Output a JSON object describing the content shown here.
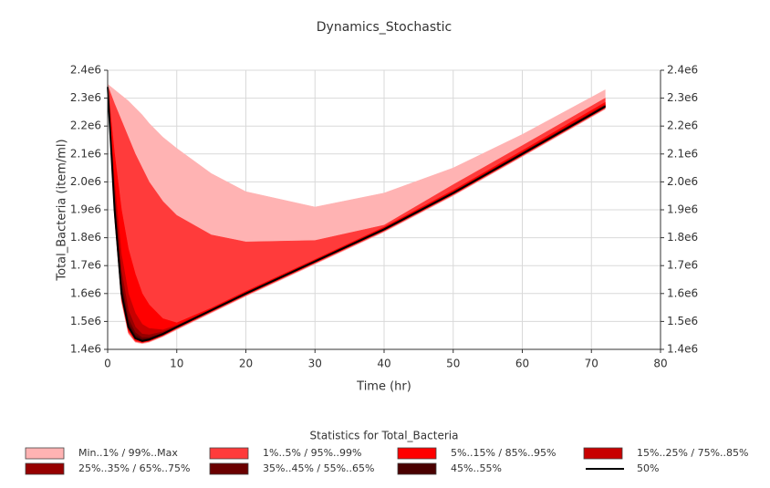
{
  "chart_data": {
    "type": "fan",
    "title": "Dynamics_Stochastic",
    "x_label": "Time (hr)",
    "y_label": "Total_Bacteria (item/ml)",
    "legend_title": "Statistics for Total_Bacteria",
    "x": [
      0,
      1,
      2,
      3,
      4,
      5,
      6,
      8,
      10,
      15,
      20,
      30,
      40,
      50,
      60,
      72
    ],
    "xlim": [
      0,
      80
    ],
    "xticks": [
      0,
      10,
      20,
      30,
      40,
      50,
      60,
      70,
      80
    ],
    "ylim": [
      1400000,
      2400000
    ],
    "yticks": [
      {
        "value": 1400000,
        "label": "1.4e6"
      },
      {
        "value": 1500000,
        "label": "1.5e6"
      },
      {
        "value": 1600000,
        "label": "1.6e6"
      },
      {
        "value": 1700000,
        "label": "1.7e6"
      },
      {
        "value": 1800000,
        "label": "1.8e6"
      },
      {
        "value": 1900000,
        "label": "1.9e6"
      },
      {
        "value": 2000000,
        "label": "2.0e6"
      },
      {
        "value": 2100000,
        "label": "2.1e6"
      },
      {
        "value": 2200000,
        "label": "2.2e6"
      },
      {
        "value": 2300000,
        "label": "2.3e6"
      },
      {
        "value": 2400000,
        "label": "2.4e6"
      }
    ],
    "grid": true,
    "series": [
      {
        "name": "Min..1% / 99%..Max",
        "color": "#ffb3b3",
        "lower": [
          2330000,
          1870000,
          1570000,
          1455000,
          1425000,
          1420000,
          1425000,
          1445000,
          1470000,
          1530000,
          1590000,
          1705000,
          1820000,
          1950000,
          2090000,
          2260000
        ],
        "upper": [
          2350000,
          2330000,
          2310000,
          2290000,
          2265000,
          2240000,
          2210000,
          2160000,
          2120000,
          2030000,
          1965000,
          1910000,
          1960000,
          2050000,
          2170000,
          2330000
        ]
      },
      {
        "name": "1%..5% / 95%..99%",
        "color": "#ff3b3b",
        "lower": [
          2332000,
          1875000,
          1575000,
          1460000,
          1428000,
          1423000,
          1428000,
          1448000,
          1473000,
          1533000,
          1593000,
          1708000,
          1823000,
          1953000,
          2093000,
          2263000
        ],
        "upper": [
          2345000,
          2280000,
          2220000,
          2160000,
          2100000,
          2050000,
          2000000,
          1930000,
          1880000,
          1810000,
          1785000,
          1790000,
          1845000,
          1990000,
          2130000,
          2300000
        ]
      },
      {
        "name": "5%..15% / 85%..95%",
        "color": "#ff0000",
        "lower": [
          2335000,
          1885000,
          1585000,
          1468000,
          1432000,
          1425000,
          1430000,
          1450000,
          1476000,
          1536000,
          1596000,
          1711000,
          1826000,
          1956000,
          2096000,
          2266000
        ],
        "upper": [
          2340000,
          2100000,
          1900000,
          1760000,
          1670000,
          1600000,
          1560000,
          1510000,
          1495000,
          1548000,
          1608000,
          1722000,
          1838000,
          1970000,
          2112000,
          2285000
        ]
      },
      {
        "name": "15%..25% / 75%..85%",
        "color": "#c80000",
        "lower": [
          2337000,
          1897000,
          1597000,
          1477000,
          1437000,
          1427000,
          1432000,
          1452000,
          1477000,
          1537000,
          1597000,
          1712000,
          1827000,
          1957000,
          2097000,
          2267000
        ],
        "upper": [
          2340000,
          2000000,
          1740000,
          1600000,
          1530000,
          1490000,
          1475000,
          1470000,
          1487000,
          1545000,
          1605000,
          1720000,
          1835000,
          1966000,
          2107000,
          2278000
        ]
      },
      {
        "name": "25%..35% / 65%..75%",
        "color": "#960000",
        "lower": [
          2338000,
          1898000,
          1598000,
          1478000,
          1438000,
          1428000,
          1433000,
          1453000,
          1478000,
          1538000,
          1598000,
          1713000,
          1828000,
          1958000,
          2098000,
          2268000
        ],
        "upper": [
          2340000,
          1960000,
          1680000,
          1540000,
          1480000,
          1455000,
          1452000,
          1463000,
          1484000,
          1543000,
          1603000,
          1718000,
          1833000,
          1964000,
          2105000,
          2275000
        ]
      },
      {
        "name": "35%..45% / 55%..65%",
        "color": "#6b0000",
        "lower": [
          2339000,
          1899000,
          1599000,
          1479000,
          1439000,
          1429000,
          1434000,
          1454000,
          1479000,
          1539000,
          1599000,
          1714000,
          1829000,
          1959000,
          2099000,
          2269000
        ],
        "upper": [
          2340000,
          1930000,
          1640000,
          1510000,
          1460000,
          1442000,
          1443000,
          1459000,
          1482000,
          1542000,
          1602000,
          1717000,
          1832000,
          1962000,
          2103000,
          2273000
        ]
      },
      {
        "name": "45%..55%",
        "color": "#4a0000",
        "lower": [
          2339500,
          1899500,
          1599500,
          1479500,
          1439500,
          1429500,
          1434500,
          1454500,
          1479500,
          1539500,
          1599500,
          1714500,
          1829500,
          1959500,
          2099500,
          2269500
        ],
        "upper": [
          2340000,
          1915000,
          1620000,
          1495000,
          1450000,
          1436000,
          1439000,
          1457000,
          1481000,
          1541000,
          1601000,
          1716000,
          1831000,
          1961000,
          2102000,
          2272000
        ]
      },
      {
        "name": "50%",
        "color": "#000000",
        "values": [
          2340000,
          1900000,
          1600000,
          1480000,
          1440000,
          1430000,
          1435000,
          1455000,
          1480000,
          1540000,
          1600000,
          1715000,
          1830000,
          1960000,
          2100000,
          2270000
        ]
      }
    ]
  }
}
